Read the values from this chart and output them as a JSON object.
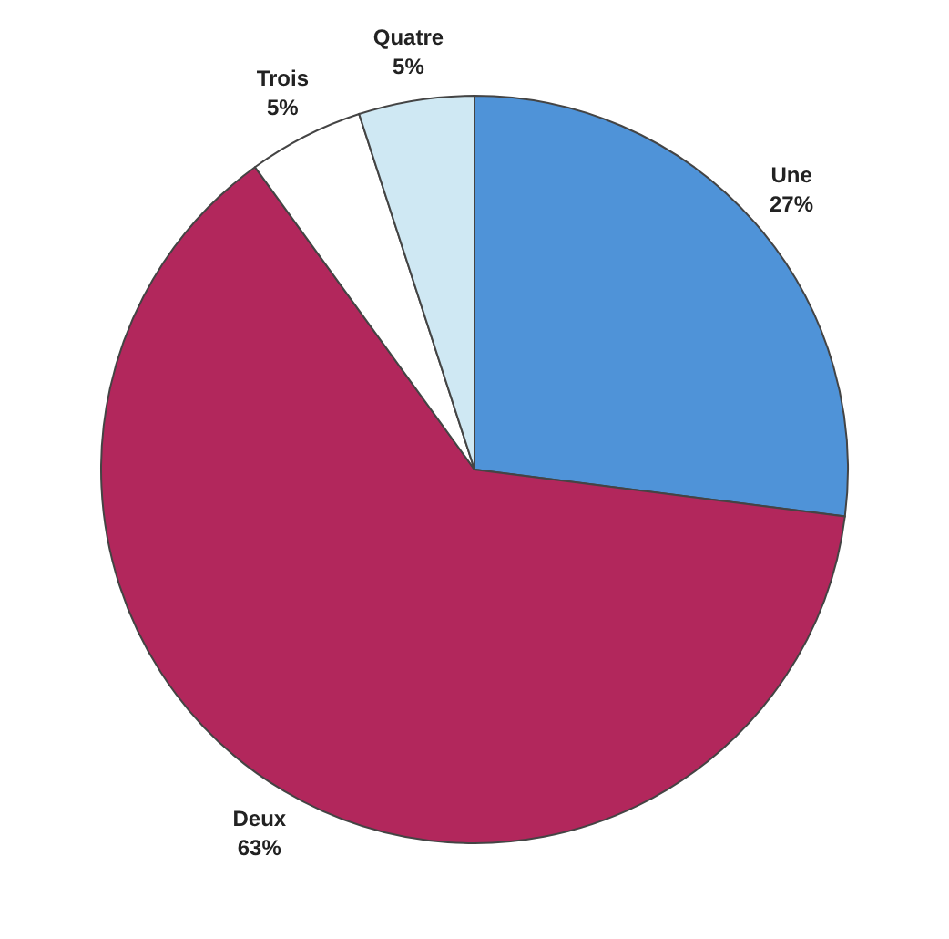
{
  "chart_data": {
    "type": "pie",
    "categories": [
      "Une",
      "Deux",
      "Trois",
      "Quatre"
    ],
    "values": [
      27,
      63,
      5,
      5
    ],
    "value_labels": [
      "27%",
      "63%",
      "5%",
      "5%"
    ],
    "colors": [
      "#4f93d8",
      "#b2275c",
      "#ffffff",
      "#cfe8f3"
    ]
  }
}
